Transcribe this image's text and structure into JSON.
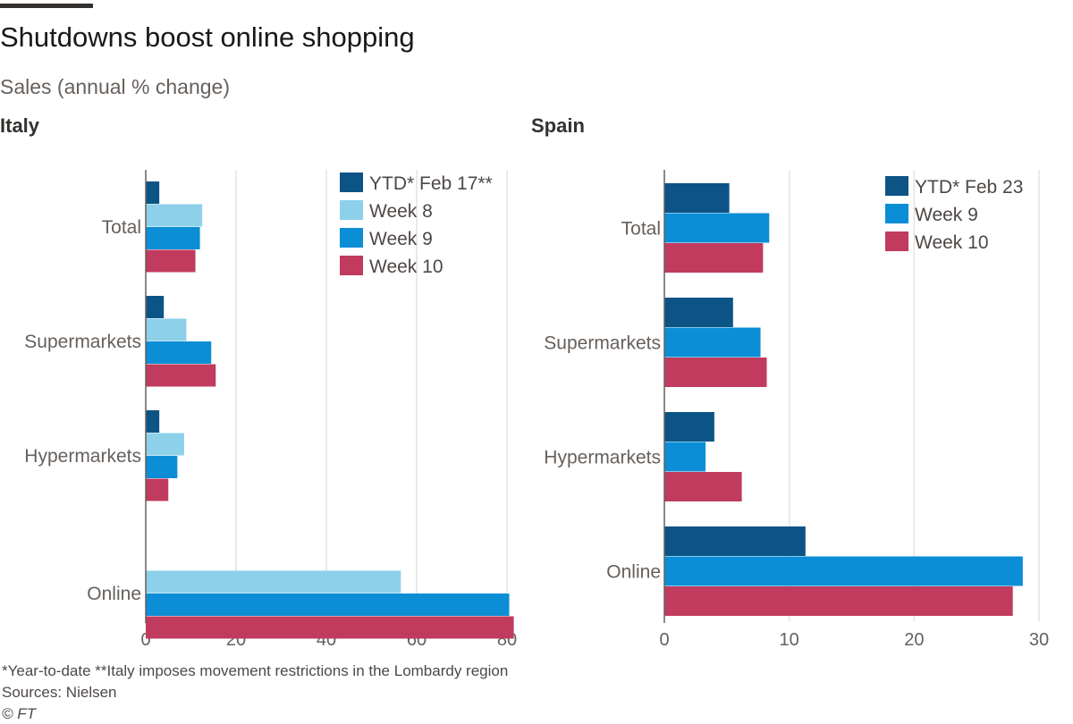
{
  "title": "Shutdowns boost online shopping",
  "subtitle": "Sales (annual % change)",
  "footnote": "*Year-to-date   **Italy imposes movement restrictions in the Lombardy region",
  "sources": "Sources: Nielsen",
  "copyright": "© FT",
  "colors": {
    "ytd": "#0d5486",
    "week8": "#8dd0ea",
    "week9": "#0b8ed6",
    "week10": "#c03b5e",
    "gridline": "#e6e3e0",
    "axis": "#66605c",
    "text": "#66605c"
  },
  "chart_data": [
    {
      "type": "bar",
      "orientation": "horizontal",
      "panel_title": "Italy",
      "categories": [
        "Total",
        "Supermarkets",
        "Hypermarkets",
        "Online"
      ],
      "xlim": [
        0,
        80
      ],
      "xticks": [
        0,
        20,
        40,
        60,
        80
      ],
      "grid": true,
      "legend_position": "top-right",
      "series": [
        {
          "name": "YTD* Feb 17**",
          "color_key": "ytd",
          "values": [
            3,
            4,
            3,
            0
          ]
        },
        {
          "name": "Week 8",
          "color_key": "week8",
          "values": [
            12.5,
            9,
            8.5,
            56.5
          ]
        },
        {
          "name": "Week 9",
          "color_key": "week9",
          "values": [
            12,
            14.5,
            7,
            80.5
          ]
        },
        {
          "name": "Week 10",
          "color_key": "week10",
          "values": [
            11,
            15.5,
            5,
            81.5
          ]
        }
      ]
    },
    {
      "type": "bar",
      "orientation": "horizontal",
      "panel_title": "Spain",
      "categories": [
        "Total",
        "Supermarkets",
        "Hypermarkets",
        "Online"
      ],
      "xlim": [
        0,
        30
      ],
      "xticks": [
        0,
        10,
        20,
        30
      ],
      "grid": true,
      "legend_position": "top-right",
      "series": [
        {
          "name": "YTD* Feb 23",
          "color_key": "ytd",
          "values": [
            5.2,
            5.5,
            4,
            11.3
          ]
        },
        {
          "name": "Week 9",
          "color_key": "week9",
          "values": [
            8.4,
            7.7,
            3.3,
            28.7
          ]
        },
        {
          "name": "Week 10",
          "color_key": "week10",
          "values": [
            7.9,
            8.2,
            6.2,
            27.9
          ]
        }
      ]
    }
  ]
}
